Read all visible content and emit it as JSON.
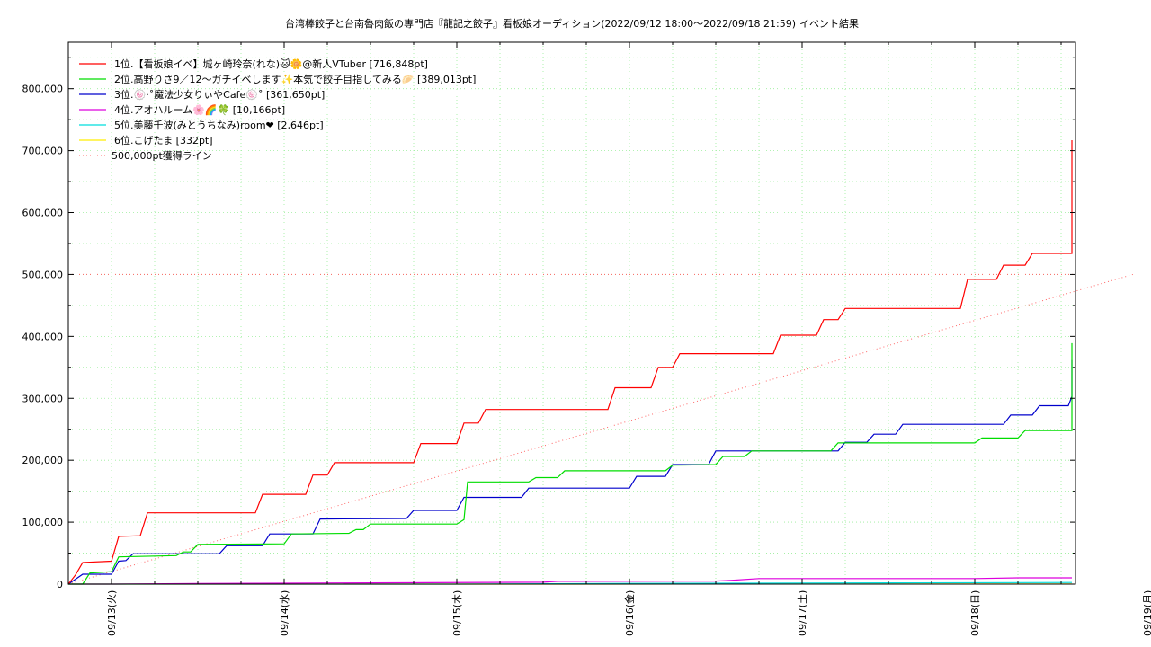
{
  "chart_data": {
    "type": "line",
    "title": "台湾棒餃子と台南魯肉飯の専門店『龍記之餃子』看板娘オーディション(2022/09/12 18:00〜2022/09/18 21:59)",
    "subtitle": "イベント結果",
    "x_ticks": [
      "09/13(火)",
      "09/14(水)",
      "09/15(木)",
      "09/16(金)",
      "09/17(土)",
      "09/18(日)",
      "09/19(月)"
    ],
    "x_range": [
      "09/12 18:00",
      "09/18 21:59"
    ],
    "y_ticks": [
      "0",
      "100,000",
      "200,000",
      "300,000",
      "400,000",
      "500,000",
      "600,000",
      "700,000",
      "800,000"
    ],
    "ylim": [
      0,
      875000
    ],
    "grid": true,
    "legend_position": "top-left",
    "reference_line": {
      "name": "500,000pt獲得ライン",
      "color": "#ff6666",
      "style": "dotted",
      "points": [
        [
          "09/12 18:00",
          0
        ],
        [
          "09/18 21:59",
          500000
        ]
      ]
    },
    "series": [
      {
        "name": "1位.【看板娘イベ】城ヶ崎玲奈(れな)🐱🌼@新人VTuber [716,848pt]",
        "color": "#ff0000",
        "points": [
          [
            "09/12 18:00",
            0
          ],
          [
            "09/12 19:00",
            15000
          ],
          [
            "09/12 20:00",
            35000
          ],
          [
            "09/13 00:00",
            37000
          ],
          [
            "09/13 01:00",
            77000
          ],
          [
            "09/13 04:00",
            78000
          ],
          [
            "09/13 05:00",
            115000
          ],
          [
            "09/13 20:00",
            115000
          ],
          [
            "09/13 21:00",
            145000
          ],
          [
            "09/14 03:00",
            145000
          ],
          [
            "09/14 04:00",
            176000
          ],
          [
            "09/14 06:00",
            176000
          ],
          [
            "09/14 07:00",
            196000
          ],
          [
            "09/14 18:00",
            196000
          ],
          [
            "09/14 19:00",
            227000
          ],
          [
            "09/15 00:00",
            227000
          ],
          [
            "09/15 01:00",
            260000
          ],
          [
            "09/15 03:00",
            260000
          ],
          [
            "09/15 04:00",
            282000
          ],
          [
            "09/15 21:00",
            282000
          ],
          [
            "09/15 22:00",
            317000
          ],
          [
            "09/16 03:00",
            317000
          ],
          [
            "09/16 04:00",
            350000
          ],
          [
            "09/16 06:00",
            350000
          ],
          [
            "09/16 07:00",
            372000
          ],
          [
            "09/16 20:00",
            372000
          ],
          [
            "09/16 21:00",
            402000
          ],
          [
            "09/17 02:00",
            402000
          ],
          [
            "09/17 03:00",
            427000
          ],
          [
            "09/17 05:00",
            427000
          ],
          [
            "09/17 06:00",
            445000
          ],
          [
            "09/17 22:00",
            445000
          ],
          [
            "09/17 23:00",
            492000
          ],
          [
            "09/18 03:00",
            492000
          ],
          [
            "09/18 04:00",
            515000
          ],
          [
            "09/18 07:00",
            515000
          ],
          [
            "09/18 08:00",
            534000
          ],
          [
            "09/18 20:00",
            534000
          ],
          [
            "09/18 21:00",
            558000
          ],
          [
            "09/18 23:30",
            558000
          ],
          [
            "09/19 00:30",
            580000
          ],
          [
            "09/19 03:00",
            580000
          ],
          [
            "09/19 04:00",
            615000
          ],
          [
            "09/19 04:30",
            716848
          ],
          [
            "09/19 06:00",
            716848
          ]
        ]
      },
      {
        "name": "2位.高野りさ9／12〜ガチイベします✨本気で餃子目指してみる🥟 [389,013pt]",
        "color": "#00dd00",
        "points": [
          [
            "09/12 18:00",
            0
          ],
          [
            "09/12 20:00",
            0
          ],
          [
            "09/12 21:00",
            18000
          ],
          [
            "09/13 00:00",
            20000
          ],
          [
            "09/13 01:00",
            44000
          ],
          [
            "09/13 09:00",
            46000
          ],
          [
            "09/13 10:00",
            52000
          ],
          [
            "09/13 11:00",
            52000
          ],
          [
            "09/13 12:00",
            64000
          ],
          [
            "09/14 00:00",
            65000
          ],
          [
            "09/14 01:00",
            81000
          ],
          [
            "09/14 09:00",
            82000
          ],
          [
            "09/14 10:00",
            88000
          ],
          [
            "09/14 11:00",
            88000
          ],
          [
            "09/14 12:00",
            97000
          ],
          [
            "09/15 00:00",
            97000
          ],
          [
            "09/15 01:00",
            104000
          ],
          [
            "09/15 01:30",
            165000
          ],
          [
            "09/15 10:00",
            165000
          ],
          [
            "09/15 11:00",
            172000
          ],
          [
            "09/15 14:00",
            172000
          ],
          [
            "09/15 15:00",
            183000
          ],
          [
            "09/16 05:00",
            183000
          ],
          [
            "09/16 06:00",
            192000
          ],
          [
            "09/16 12:00",
            193000
          ],
          [
            "09/16 13:00",
            206000
          ],
          [
            "09/16 16:00",
            206000
          ],
          [
            "09/16 17:00",
            215000
          ],
          [
            "09/17 04:00",
            215000
          ],
          [
            "09/17 05:00",
            228000
          ],
          [
            "09/18 00:00",
            228000
          ],
          [
            "09/18 01:00",
            236000
          ],
          [
            "09/18 06:00",
            236000
          ],
          [
            "09/18 07:00",
            248000
          ],
          [
            "09/18 22:00",
            248000
          ],
          [
            "09/18 23:00",
            260000
          ],
          [
            "09/19 03:00",
            260000
          ],
          [
            "09/19 04:00",
            300000
          ],
          [
            "09/19 04:30",
            389013
          ],
          [
            "09/19 06:00",
            389013
          ]
        ]
      },
      {
        "name": "3位.🍥‧˚魔法少女りぃやCafe🍥˚ [361,650pt]",
        "color": "#0000cc",
        "points": [
          [
            "09/12 18:00",
            0
          ],
          [
            "09/12 20:00",
            16000
          ],
          [
            "09/13 00:00",
            16000
          ],
          [
            "09/13 01:00",
            37000
          ],
          [
            "09/13 02:00",
            38000
          ],
          [
            "09/13 03:00",
            49000
          ],
          [
            "09/13 15:00",
            49000
          ],
          [
            "09/13 16:00",
            62000
          ],
          [
            "09/13 21:00",
            62000
          ],
          [
            "09/13 22:00",
            81000
          ],
          [
            "09/14 04:00",
            81000
          ],
          [
            "09/14 05:00",
            105000
          ],
          [
            "09/14 17:00",
            106000
          ],
          [
            "09/14 18:00",
            119000
          ],
          [
            "09/15 00:00",
            119000
          ],
          [
            "09/15 01:00",
            140000
          ],
          [
            "09/15 09:00",
            140000
          ],
          [
            "09/15 10:00",
            155000
          ],
          [
            "09/16 00:00",
            155000
          ],
          [
            "09/16 01:00",
            174000
          ],
          [
            "09/16 05:00",
            174000
          ],
          [
            "09/16 06:00",
            193000
          ],
          [
            "09/16 11:00",
            193000
          ],
          [
            "09/16 12:00",
            215000
          ],
          [
            "09/17 05:00",
            215000
          ],
          [
            "09/17 06:00",
            229000
          ],
          [
            "09/17 09:00",
            229000
          ],
          [
            "09/17 10:00",
            242000
          ],
          [
            "09/17 13:00",
            242000
          ],
          [
            "09/17 14:00",
            258000
          ],
          [
            "09/18 04:00",
            258000
          ],
          [
            "09/18 05:00",
            273000
          ],
          [
            "09/18 08:00",
            273000
          ],
          [
            "09/18 09:00",
            288000
          ],
          [
            "09/18 13:00",
            288000
          ],
          [
            "09/18 14:00",
            303000
          ],
          [
            "09/19 02:00",
            303000
          ],
          [
            "09/19 03:00",
            316000
          ],
          [
            "09/19 08:00",
            316000
          ],
          [
            "09/19 09:00",
            334000
          ],
          [
            "09/19 17:00",
            334000
          ],
          [
            "09/19 18:00",
            361650
          ],
          [
            "09/19 20:00",
            361650
          ]
        ]
      },
      {
        "name": "4位.アオハルーム🌸🌈🍀 [10,166pt]",
        "color": "#dd00dd",
        "points": [
          [
            "09/12 18:00",
            0
          ],
          [
            "09/13 00:00",
            0
          ],
          [
            "09/13 12:00",
            1000
          ],
          [
            "09/14 12:00",
            2000
          ],
          [
            "09/15 12:00",
            3000
          ],
          [
            "09/15 14:00",
            4500
          ],
          [
            "09/16 12:00",
            5000
          ],
          [
            "09/16 14:00",
            6000
          ],
          [
            "09/16 18:00",
            9000
          ],
          [
            "09/18 00:00",
            9000
          ],
          [
            "09/18 06:00",
            10166
          ],
          [
            "09/19 06:00",
            10166
          ]
        ]
      },
      {
        "name": "5位.美藤千波(みとうちなみ)room❤ [2,646pt]",
        "color": "#00dddd",
        "points": [
          [
            "09/12 18:00",
            0
          ],
          [
            "09/15 00:00",
            0
          ],
          [
            "09/16 00:00",
            1200
          ],
          [
            "09/17 12:00",
            2000
          ],
          [
            "09/19 06:00",
            2646
          ]
        ]
      },
      {
        "name": "6位.こげたま [332pt]",
        "color": "#ffee00",
        "points": [
          [
            "09/12 18:00",
            0
          ],
          [
            "09/15 00:00",
            0
          ],
          [
            "09/17 00:00",
            200
          ],
          [
            "09/19 06:00",
            332
          ]
        ]
      }
    ]
  }
}
